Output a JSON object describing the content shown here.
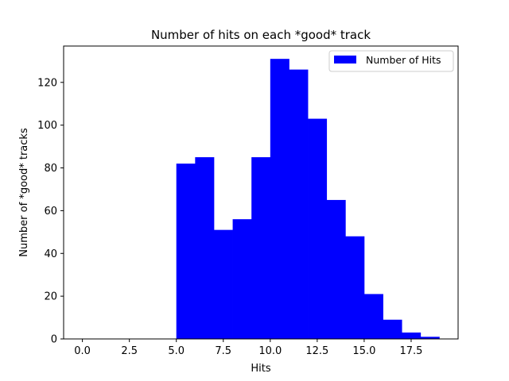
{
  "chart_data": {
    "type": "bar",
    "title": "Number of hits on each *good* track",
    "xlabel": "Hits",
    "ylabel": "Number of *good* tracks",
    "xlim": [
      -1,
      20
    ],
    "ylim": [
      0,
      137
    ],
    "xticks": [
      0.0,
      2.5,
      5.0,
      7.5,
      10.0,
      12.5,
      15.0,
      17.5
    ],
    "xtick_labels": [
      "0.0",
      "2.5",
      "5.0",
      "7.5",
      "10.0",
      "12.5",
      "15.0",
      "17.5"
    ],
    "yticks": [
      0,
      20,
      40,
      60,
      80,
      100,
      120
    ],
    "ytick_labels": [
      "0",
      "20",
      "40",
      "60",
      "80",
      "100",
      "120"
    ],
    "bin_edges": [
      5,
      6,
      7,
      8,
      9,
      10,
      11,
      12,
      13,
      14,
      15,
      16,
      17,
      18,
      19
    ],
    "series": [
      {
        "name": "Number of Hits",
        "color": "#0000ff",
        "values": [
          82,
          85,
          51,
          56,
          85,
          131,
          126,
          103,
          65,
          48,
          21,
          9,
          3,
          1
        ]
      }
    ],
    "legend": {
      "position": "top-right"
    },
    "grid": false
  }
}
